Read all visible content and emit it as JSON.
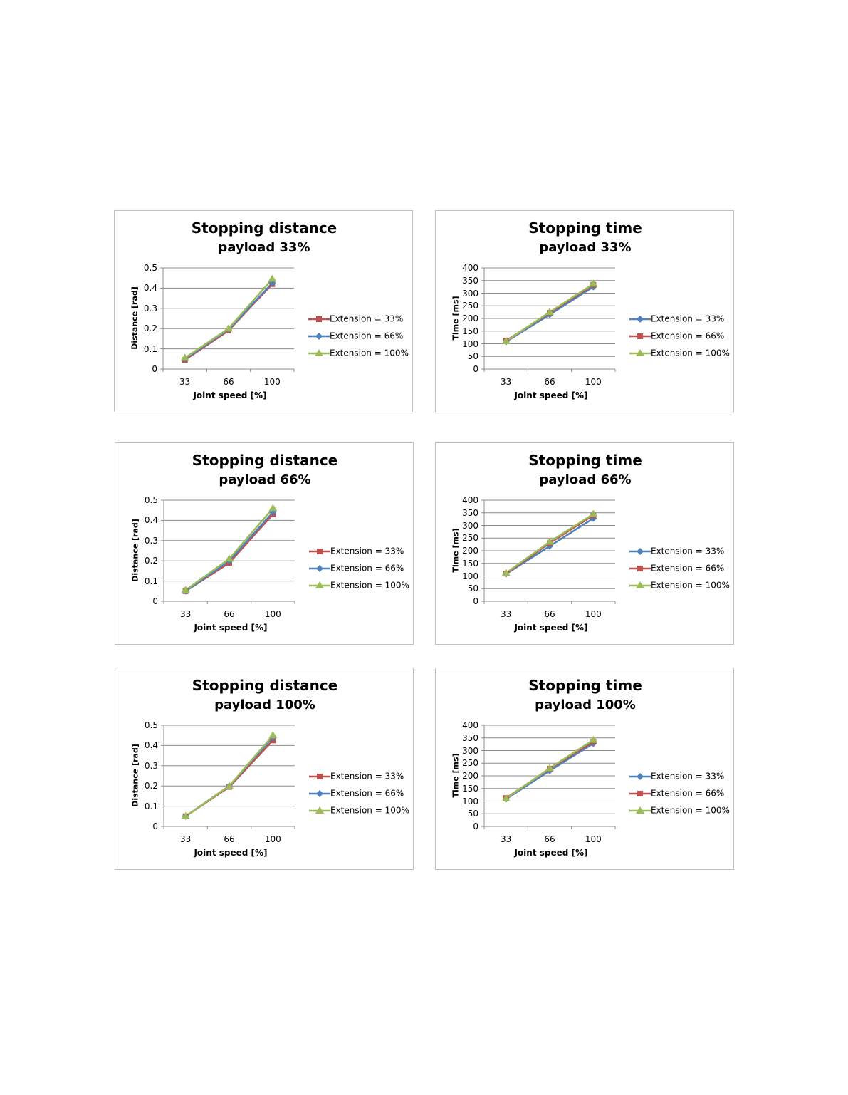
{
  "colors": {
    "red": "#c0504d",
    "blue": "#4f81bd",
    "green": "#9bbb59",
    "grid": "#8c8c8c",
    "axis": "#8c8c8c"
  },
  "chart_data": [
    {
      "type": "line",
      "title": "Stopping distance",
      "subtitle": "payload 33%",
      "xlabel": "Joint speed [%]",
      "ylabel": "Distance [rad]",
      "categories": [
        "33",
        "66",
        "100"
      ],
      "ylim": [
        0,
        0.5
      ],
      "yticks": [
        "0",
        "0.1",
        "0.2",
        "0.3",
        "0.4",
        "0.5"
      ],
      "series": [
        {
          "name": "Extension = 33%",
          "color": "red",
          "marker": "square",
          "values": [
            0.045,
            0.19,
            0.42
          ]
        },
        {
          "name": "Extension = 66%",
          "color": "blue",
          "marker": "diamond",
          "values": [
            0.05,
            0.195,
            0.425
          ]
        },
        {
          "name": "Extension = 100%",
          "color": "green",
          "marker": "triangle",
          "values": [
            0.055,
            0.2,
            0.445
          ]
        }
      ]
    },
    {
      "type": "line",
      "title": "Stopping time",
      "subtitle": "payload 33%",
      "xlabel": "Joint speed [%]",
      "ylabel": "Time [ms]",
      "categories": [
        "33",
        "66",
        "100"
      ],
      "ylim": [
        0,
        400
      ],
      "yticks": [
        "0",
        "50",
        "100",
        "150",
        "200",
        "250",
        "300",
        "350",
        "400"
      ],
      "series": [
        {
          "name": "Extension = 33%",
          "color": "blue",
          "marker": "diamond",
          "values": [
            108,
            215,
            325
          ]
        },
        {
          "name": "Extension = 66%",
          "color": "red",
          "marker": "square",
          "values": [
            112,
            222,
            333
          ]
        },
        {
          "name": "Extension = 100%",
          "color": "green",
          "marker": "triangle",
          "values": [
            110,
            225,
            337
          ]
        }
      ]
    },
    {
      "type": "line",
      "title": "Stopping distance",
      "subtitle": "payload 66%",
      "xlabel": "Joint speed [%]",
      "ylabel": "Distance [rad]",
      "categories": [
        "33",
        "66",
        "100"
      ],
      "ylim": [
        0,
        0.5
      ],
      "yticks": [
        "0",
        "0.1",
        "0.2",
        "0.3",
        "0.4",
        "0.5"
      ],
      "series": [
        {
          "name": "Extension = 33%",
          "color": "red",
          "marker": "square",
          "values": [
            0.05,
            0.19,
            0.43
          ]
        },
        {
          "name": "Extension = 66%",
          "color": "blue",
          "marker": "diamond",
          "values": [
            0.05,
            0.2,
            0.44
          ]
        },
        {
          "name": "Extension = 100%",
          "color": "green",
          "marker": "triangle",
          "values": [
            0.055,
            0.21,
            0.46
          ]
        }
      ]
    },
    {
      "type": "line",
      "title": "Stopping time",
      "subtitle": "payload 66%",
      "xlabel": "Joint speed [%]",
      "ylabel": "Time [ms]",
      "categories": [
        "33",
        "66",
        "100"
      ],
      "ylim": [
        0,
        400
      ],
      "yticks": [
        "0",
        "50",
        "100",
        "150",
        "200",
        "250",
        "300",
        "350",
        "400"
      ],
      "series": [
        {
          "name": "Extension = 33%",
          "color": "blue",
          "marker": "diamond",
          "values": [
            108,
            218,
            328
          ]
        },
        {
          "name": "Extension = 66%",
          "color": "red",
          "marker": "square",
          "values": [
            110,
            230,
            340
          ]
        },
        {
          "name": "Extension = 100%",
          "color": "green",
          "marker": "triangle",
          "values": [
            112,
            235,
            345
          ]
        }
      ]
    },
    {
      "type": "line",
      "title": "Stopping distance",
      "subtitle": "payload 100%",
      "xlabel": "Joint speed [%]",
      "ylabel": "Distance [rad]",
      "categories": [
        "33",
        "66",
        "100"
      ],
      "ylim": [
        0,
        0.5
      ],
      "yticks": [
        "0",
        "0.1",
        "0.2",
        "0.3",
        "0.4",
        "0.5"
      ],
      "series": [
        {
          "name": "Extension = 33%",
          "color": "red",
          "marker": "square",
          "values": [
            0.05,
            0.195,
            0.425
          ]
        },
        {
          "name": "Extension = 66%",
          "color": "blue",
          "marker": "diamond",
          "values": [
            0.05,
            0.2,
            0.44
          ]
        },
        {
          "name": "Extension = 100%",
          "color": "green",
          "marker": "triangle",
          "values": [
            0.05,
            0.2,
            0.45
          ]
        }
      ]
    },
    {
      "type": "line",
      "title": "Stopping time",
      "subtitle": "payload 100%",
      "xlabel": "Joint speed [%]",
      "ylabel": "Time [ms]",
      "categories": [
        "33",
        "66",
        "100"
      ],
      "ylim": [
        0,
        400
      ],
      "yticks": [
        "0",
        "50",
        "100",
        "150",
        "200",
        "250",
        "300",
        "350",
        "400"
      ],
      "series": [
        {
          "name": "Extension = 33%",
          "color": "blue",
          "marker": "diamond",
          "values": [
            108,
            220,
            328
          ]
        },
        {
          "name": "Extension = 66%",
          "color": "red",
          "marker": "square",
          "values": [
            112,
            228,
            335
          ]
        },
        {
          "name": "Extension = 100%",
          "color": "green",
          "marker": "triangle",
          "values": [
            110,
            230,
            342
          ]
        }
      ]
    }
  ]
}
